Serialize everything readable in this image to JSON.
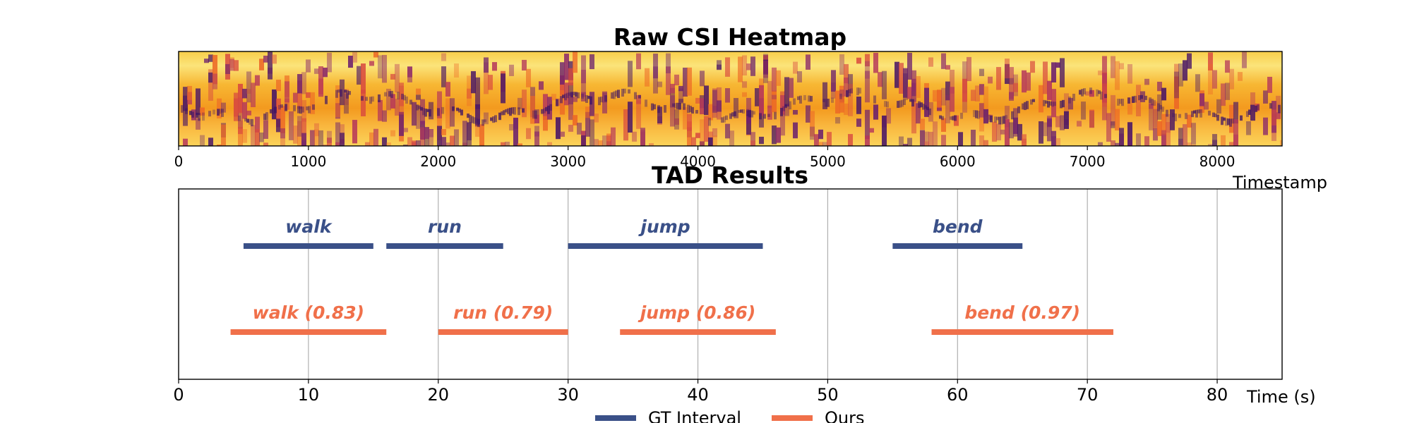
{
  "chart_data": [
    {
      "type": "heatmap",
      "title": "Raw CSI Heatmap",
      "xlabel": "Timestamp",
      "xlim": [
        0,
        8500
      ],
      "xticks": [
        0,
        1000,
        2000,
        3000,
        4000,
        5000,
        6000,
        7000,
        8000
      ],
      "colormap": "inferno",
      "yticks_visible": false
    },
    {
      "type": "bar",
      "subtype": "interval",
      "title": "TAD Results",
      "xlabel": "Time (s)",
      "xlim": [
        0,
        85
      ],
      "xticks": [
        0,
        10,
        20,
        30,
        40,
        50,
        60,
        70,
        80
      ],
      "grid": true,
      "legend": {
        "placement": "bottom-center",
        "entries": [
          {
            "label": "GT Interval",
            "color": "#3a5088"
          },
          {
            "label": "Ours",
            "color": "#f0704a"
          }
        ]
      },
      "series": [
        {
          "name": "GT Interval",
          "color": "#3a5088",
          "intervals": [
            {
              "label": "walk",
              "start": 5,
              "end": 15
            },
            {
              "label": "run",
              "start": 16,
              "end": 25
            },
            {
              "label": "jump",
              "start": 30,
              "end": 45
            },
            {
              "label": "bend",
              "start": 55,
              "end": 65
            }
          ]
        },
        {
          "name": "Ours",
          "color": "#f0704a",
          "intervals": [
            {
              "label": "walk (0.83)",
              "start": 4,
              "end": 16
            },
            {
              "label": "run (0.79)",
              "start": 20,
              "end": 30
            },
            {
              "label": "jump (0.86)",
              "start": 34,
              "end": 46
            },
            {
              "label": "bend (0.97)",
              "start": 58,
              "end": 72
            }
          ]
        }
      ]
    }
  ]
}
